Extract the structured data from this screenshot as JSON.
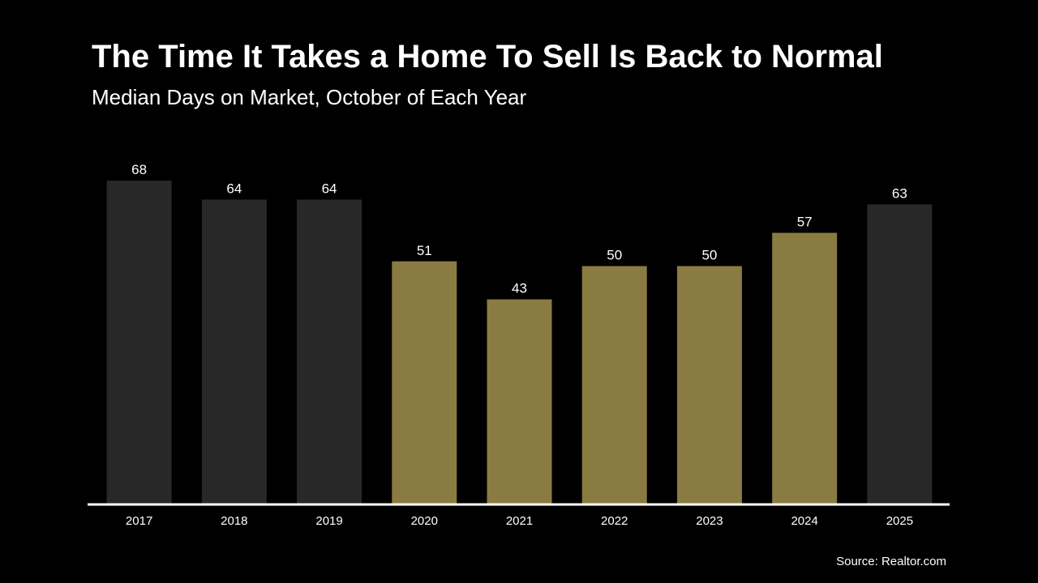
{
  "header": {
    "title": "The Time It Takes a Home To Sell Is Back to Normal",
    "subtitle": "Median Days on Market, October of Each Year"
  },
  "footer": {
    "source": "Source: Realtor.com"
  },
  "colors": {
    "background": "#000000",
    "text": "#ffffff",
    "bar_gray": "#282828",
    "bar_gold": "#8a7b42",
    "axis": "#ffffff"
  },
  "chart_data": {
    "type": "bar",
    "title": "The Time It Takes a Home To Sell Is Back to Normal",
    "subtitle": "Median Days on Market, October of Each Year",
    "xlabel": "",
    "ylabel": "",
    "categories": [
      "2017",
      "2018",
      "2019",
      "2020",
      "2021",
      "2022",
      "2023",
      "2024",
      "2025"
    ],
    "values": [
      68,
      64,
      64,
      51,
      43,
      50,
      50,
      57,
      63
    ],
    "bar_colors": [
      "#282828",
      "#282828",
      "#282828",
      "#8a7b42",
      "#8a7b42",
      "#8a7b42",
      "#8a7b42",
      "#8a7b42",
      "#282828"
    ],
    "data_labels": [
      "68",
      "64",
      "64",
      "51",
      "43",
      "50",
      "50",
      "57",
      "63"
    ],
    "ylim": [
      0,
      68
    ],
    "grid": false,
    "legend": "none"
  }
}
